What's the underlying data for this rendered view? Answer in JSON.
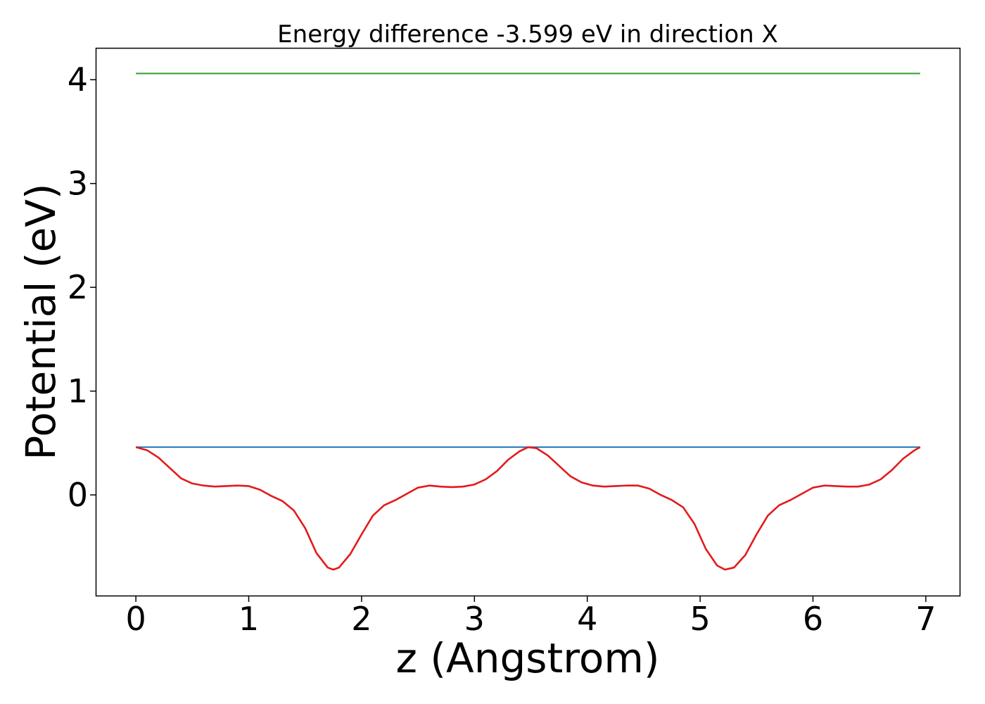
{
  "chart_data": {
    "type": "line",
    "title": "Energy difference -3.599 eV in direction X",
    "xlabel": "z (Angstrom)",
    "ylabel": "Potential (eV)",
    "xlim": [
      -0.35,
      7.3
    ],
    "ylim": [
      -0.97,
      4.3
    ],
    "xticks": [
      0,
      1,
      2,
      3,
      4,
      5,
      6,
      7
    ],
    "yticks": [
      0,
      1,
      2,
      3,
      4
    ],
    "grid": false,
    "legend": "none",
    "series": [
      {
        "color": "#2ca02c",
        "x": [
          0,
          6.95
        ],
        "y": [
          4.06,
          4.06
        ]
      },
      {
        "color": "#1f77b4",
        "x": [
          0,
          6.95
        ],
        "y": [
          0.46,
          0.46
        ]
      },
      {
        "color": "#e31a1c",
        "x": [
          0,
          0.1,
          0.2,
          0.3,
          0.4,
          0.5,
          0.6,
          0.7,
          0.8,
          0.9,
          1.0,
          1.1,
          1.2,
          1.3,
          1.4,
          1.5,
          1.6,
          1.7,
          1.75,
          1.8,
          1.9,
          2.0,
          2.1,
          2.2,
          2.3,
          2.4,
          2.5,
          2.6,
          2.7,
          2.8,
          2.9,
          3.0,
          3.1,
          3.2,
          3.3,
          3.4,
          3.475,
          3.55,
          3.65,
          3.75,
          3.85,
          3.95,
          4.05,
          4.15,
          4.25,
          4.35,
          4.45,
          4.55,
          4.65,
          4.75,
          4.85,
          4.95,
          5.05,
          5.15,
          5.22,
          5.3,
          5.4,
          5.5,
          5.6,
          5.7,
          5.8,
          5.9,
          6.0,
          6.1,
          6.2,
          6.3,
          6.4,
          6.5,
          6.6,
          6.7,
          6.8,
          6.9,
          6.95
        ],
        "y": [
          0.46,
          0.43,
          0.36,
          0.26,
          0.16,
          0.11,
          0.09,
          0.08,
          0.085,
          0.09,
          0.085,
          0.05,
          -0.01,
          -0.06,
          -0.15,
          -0.32,
          -0.56,
          -0.7,
          -0.72,
          -0.7,
          -0.57,
          -0.38,
          -0.2,
          -0.1,
          -0.05,
          0.01,
          0.07,
          0.09,
          0.08,
          0.075,
          0.08,
          0.1,
          0.15,
          0.23,
          0.34,
          0.42,
          0.46,
          0.45,
          0.38,
          0.28,
          0.18,
          0.12,
          0.09,
          0.08,
          0.085,
          0.09,
          0.09,
          0.06,
          0.0,
          -0.05,
          -0.12,
          -0.28,
          -0.52,
          -0.68,
          -0.72,
          -0.7,
          -0.58,
          -0.38,
          -0.2,
          -0.1,
          -0.05,
          0.01,
          0.07,
          0.09,
          0.085,
          0.08,
          0.08,
          0.1,
          0.15,
          0.24,
          0.35,
          0.43,
          0.46
        ]
      }
    ]
  }
}
